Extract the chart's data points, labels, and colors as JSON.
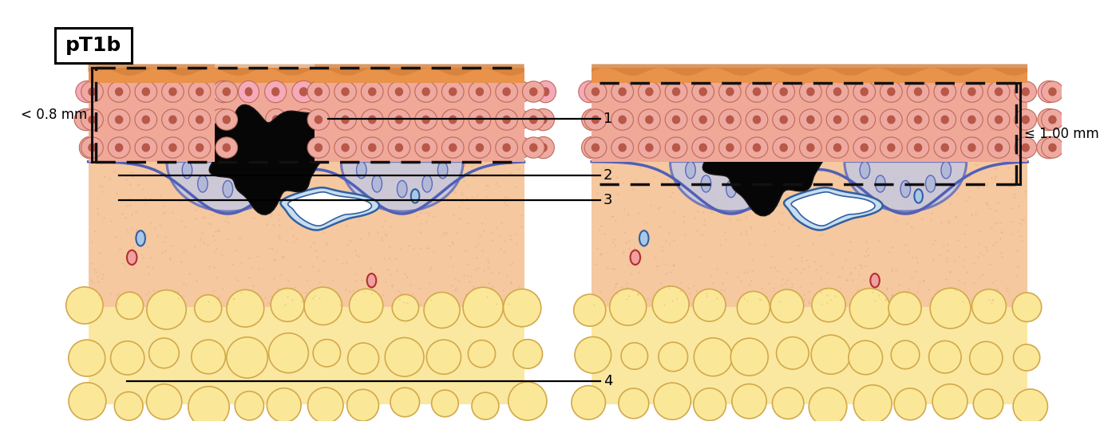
{
  "title": "pT1b",
  "left_label": "< 0.8 mm",
  "right_label": "≤ 1.00 mm",
  "skin_surface_color": "#E8924A",
  "skin_surface_line_color": "#CC6633",
  "epidermis_color": "#F0A898",
  "epidermis_cell_fill": "#F0B0A0",
  "epidermis_cell_edge": "#C87060",
  "epidermis_cell_nucleus": "#C06050",
  "dermis_color": "#F5C8A0",
  "dermis_deep_color": "#F0C090",
  "fat_color": "#FAE8A0",
  "fat_lobule_fill": "#FAE8A0",
  "fat_lobule_edge": "#E0B860",
  "junction_color": "#5060B8",
  "junction_fill": "#B0B8E0",
  "melanoma_color": "#080808",
  "background": "#ffffff",
  "line_color": "#111111",
  "vessel_blue_fill": "#A8C8E8",
  "vessel_blue_edge": "#3060A0",
  "vessel_red_fill": "#F0A0A0",
  "vessel_red_edge": "#B03030",
  "lymph_fill": "#C8DDF0",
  "lymph_edge": "#3060A0"
}
